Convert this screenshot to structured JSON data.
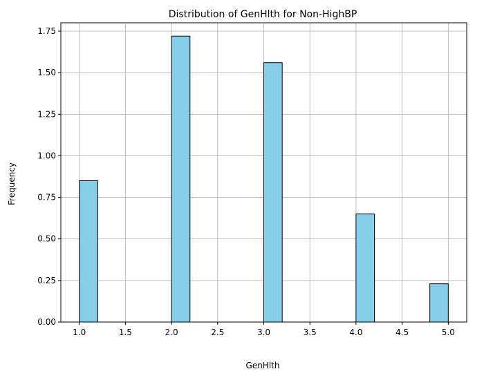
{
  "chart_data": {
    "type": "bar",
    "title": "Distribution of GenHlth for Non-HighBP",
    "xlabel": "GenHlth",
    "ylabel": "Frequency",
    "xlim": [
      0.8,
      5.2
    ],
    "ylim": [
      0,
      1.8
    ],
    "grid": true,
    "x_ticks": [
      "1.0",
      "1.5",
      "2.0",
      "2.5",
      "3.0",
      "3.5",
      "4.0",
      "4.5",
      "5.0"
    ],
    "y_ticks": [
      "0.00",
      "0.25",
      "0.50",
      "0.75",
      "1.00",
      "1.25",
      "1.50",
      "1.75"
    ],
    "bin_width": 0.2,
    "bins": [
      {
        "x_start": 1.0,
        "value": 0.85
      },
      {
        "x_start": 2.0,
        "value": 1.72
      },
      {
        "x_start": 3.0,
        "value": 1.56
      },
      {
        "x_start": 4.0,
        "value": 0.65
      },
      {
        "x_start": 4.8,
        "value": 0.23
      }
    ],
    "bar_color": "#87CEEB",
    "edge_color": "#000000"
  }
}
